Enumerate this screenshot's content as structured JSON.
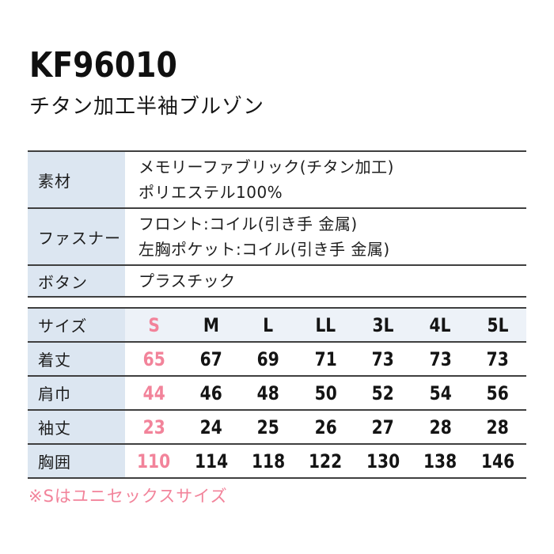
{
  "header": {
    "product_code": "KF96010",
    "product_name": "チタン加工半袖ブルゾン"
  },
  "spec_table": {
    "rows": [
      {
        "label": "素材",
        "lines": [
          "メモリーファブリック(チタン加工)",
          "ポリエステル100%"
        ]
      },
      {
        "label": "ファスナー",
        "lines": [
          "フロント:コイル(引き手 金属)",
          "左胸ポケット:コイル(引き手 金属)"
        ]
      },
      {
        "label": "ボタン",
        "lines": [
          "プラスチック"
        ]
      }
    ]
  },
  "size_table": {
    "header": {
      "label": "サイズ",
      "columns": [
        "S",
        "M",
        "L",
        "LL",
        "3L",
        "4L",
        "5L"
      ]
    },
    "highlighted_column": "S",
    "rows": [
      {
        "label": "着丈",
        "values": [
          "65",
          "67",
          "69",
          "71",
          "73",
          "73",
          "73"
        ]
      },
      {
        "label": "肩巾",
        "values": [
          "44",
          "46",
          "48",
          "50",
          "52",
          "54",
          "56"
        ]
      },
      {
        "label": "袖丈",
        "values": [
          "23",
          "24",
          "25",
          "26",
          "27",
          "28",
          "28"
        ]
      },
      {
        "label": "胸囲",
        "values": [
          "110",
          "114",
          "118",
          "122",
          "130",
          "138",
          "146"
        ]
      }
    ]
  },
  "footnote": {
    "text": "※Sはユニセックスサイズ"
  },
  "colors": {
    "page_bg": "#ffffff",
    "text": "#1d1d1d",
    "accent_pink": "#f2839a",
    "label_cell_bg": "#dce6f1",
    "header_row_bg": "#edf2f8",
    "line": "#3f3f3f"
  }
}
